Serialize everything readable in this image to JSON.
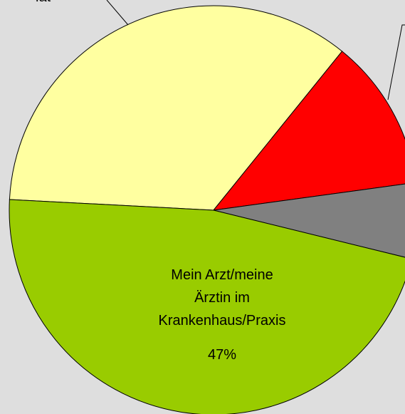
{
  "chart_data": {
    "type": "pie",
    "categories": [
      "lat",
      null,
      null,
      "Mein Arzt/meine\nÄrztin im\nKrankenhaus/Praxis"
    ],
    "values": [
      35,
      12,
      6,
      47
    ],
    "value_labels": [
      null,
      null,
      null,
      "47%"
    ],
    "colors": [
      "#ffffa0",
      "#ff0000",
      "#808080",
      "#99cc00"
    ]
  }
}
